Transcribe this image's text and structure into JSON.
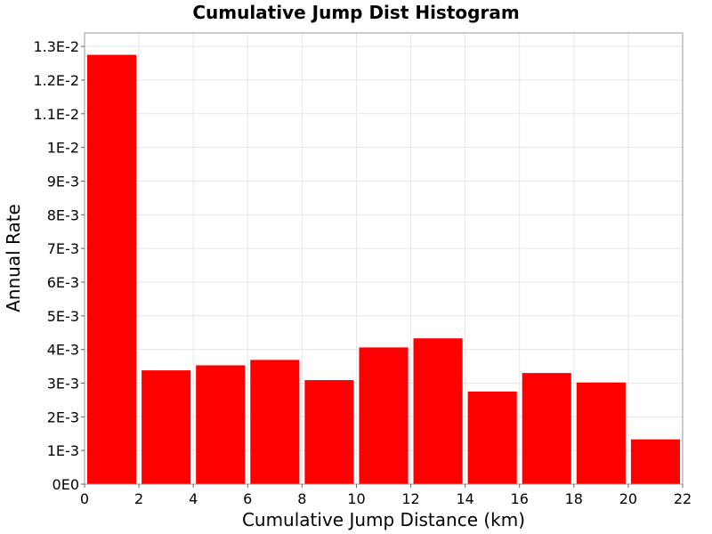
{
  "chart_data": {
    "type": "bar",
    "title": "Cumulative Jump Dist Histogram",
    "xlabel": "Cumulative Jump Distance (km)",
    "ylabel": "Annual Rate",
    "xlim": [
      0,
      22
    ],
    "ylim": [
      0,
      0.0134
    ],
    "bin_width": 2,
    "bin_starts": [
      0,
      2,
      4,
      6,
      8,
      10,
      12,
      14,
      16,
      18,
      20
    ],
    "values": [
      0.01275,
      0.00338,
      0.00353,
      0.00369,
      0.00309,
      0.00406,
      0.00433,
      0.00275,
      0.0033,
      0.00302,
      0.00133
    ],
    "x_ticks": [
      0,
      2,
      4,
      6,
      8,
      10,
      12,
      14,
      16,
      18,
      20,
      22
    ],
    "x_tick_labels": [
      "0",
      "2",
      "4",
      "6",
      "8",
      "10",
      "12",
      "14",
      "16",
      "18",
      "20",
      "22"
    ],
    "y_ticks": [
      0,
      0.001,
      0.002,
      0.003,
      0.004,
      0.005,
      0.006,
      0.007,
      0.008,
      0.009,
      0.01,
      0.011,
      0.012,
      0.013
    ],
    "y_tick_labels": [
      "0E0",
      "1E-3",
      "2E-3",
      "3E-3",
      "4E-3",
      "5E-3",
      "6E-3",
      "7E-3",
      "8E-3",
      "9E-3",
      "1E-2",
      "1.1E-2",
      "1.2E-2",
      "1.3E-2"
    ],
    "grid": true,
    "colors": {
      "bar": "#ff0000",
      "grid": "#e6e6e6",
      "frame": "#999999"
    }
  }
}
